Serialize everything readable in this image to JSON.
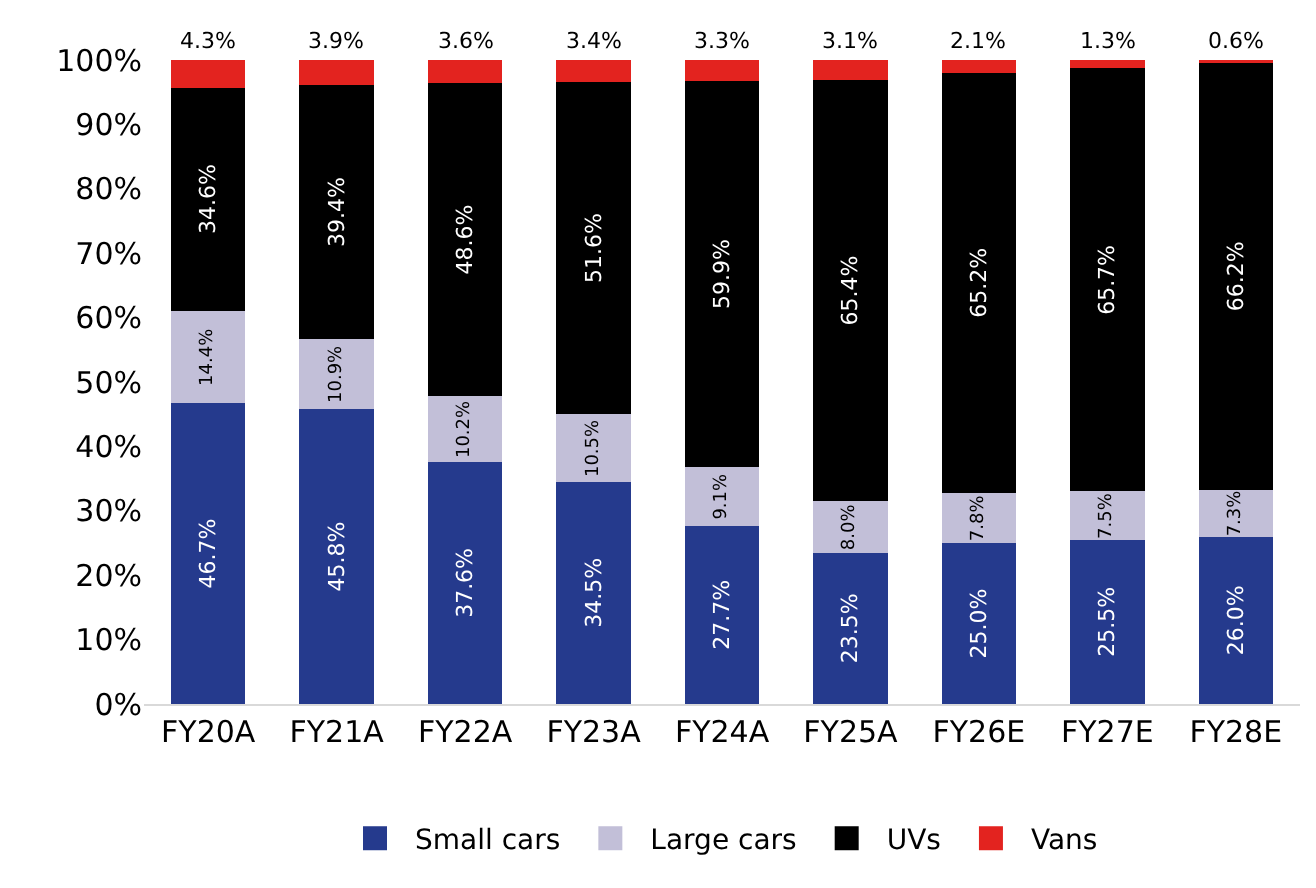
{
  "chart_data": {
    "type": "bar",
    "stacked": true,
    "categories": [
      "FY20A",
      "FY21A",
      "FY22A",
      "FY23A",
      "FY24A",
      "FY25A",
      "FY26E",
      "FY27E",
      "FY28E"
    ],
    "series": [
      {
        "name": "Small cars",
        "color": "#253a8d",
        "values": [
          46.7,
          45.8,
          37.6,
          34.5,
          27.7,
          23.5,
          25.0,
          25.5,
          26.0
        ],
        "value_labels": [
          "46.7%",
          "45.8%",
          "37.6%",
          "34.5%",
          "27.7%",
          "23.5%",
          "25.0%",
          "25.5%",
          "26.0%"
        ]
      },
      {
        "name": "Large cars",
        "color": "#c2bfd8",
        "values": [
          14.4,
          10.9,
          10.2,
          10.5,
          9.1,
          8.0,
          7.8,
          7.5,
          7.3
        ],
        "value_labels": [
          "14.4%",
          "10.9%",
          "10.2%",
          "10.5%",
          "9.1%",
          "8.0%",
          "7.8%",
          "7.5%",
          "7.3%"
        ]
      },
      {
        "name": "UVs",
        "color": "#000000",
        "values": [
          34.6,
          39.4,
          48.6,
          51.6,
          59.9,
          65.4,
          65.2,
          65.7,
          66.2
        ],
        "value_labels": [
          "34.6%",
          "39.4%",
          "48.6%",
          "51.6%",
          "59.9%",
          "65.4%",
          "65.2%",
          "65.7%",
          "66.2%"
        ]
      },
      {
        "name": "Vans",
        "color": "#e3231f",
        "values": [
          4.3,
          3.9,
          3.6,
          3.4,
          3.3,
          3.1,
          2.1,
          1.3,
          0.6
        ],
        "value_labels": [
          "4.3%",
          "3.9%",
          "3.6%",
          "3.4%",
          "3.3%",
          "3.1%",
          "2.1%",
          "1.3%",
          "0.6%"
        ]
      }
    ],
    "ylim": [
      0,
      100
    ],
    "yticks": [
      {
        "value": 0,
        "label": "0%"
      },
      {
        "value": 10,
        "label": "10%"
      },
      {
        "value": 20,
        "label": "20%"
      },
      {
        "value": 30,
        "label": "30%"
      },
      {
        "value": 40,
        "label": "40%"
      },
      {
        "value": 50,
        "label": "50%"
      },
      {
        "value": 60,
        "label": "60%"
      },
      {
        "value": 70,
        "label": "70%"
      },
      {
        "value": 80,
        "label": "80%"
      },
      {
        "value": 90,
        "label": "90%"
      },
      {
        "value": 100,
        "label": "100%"
      }
    ],
    "grid": false,
    "legend": "bottom"
  }
}
